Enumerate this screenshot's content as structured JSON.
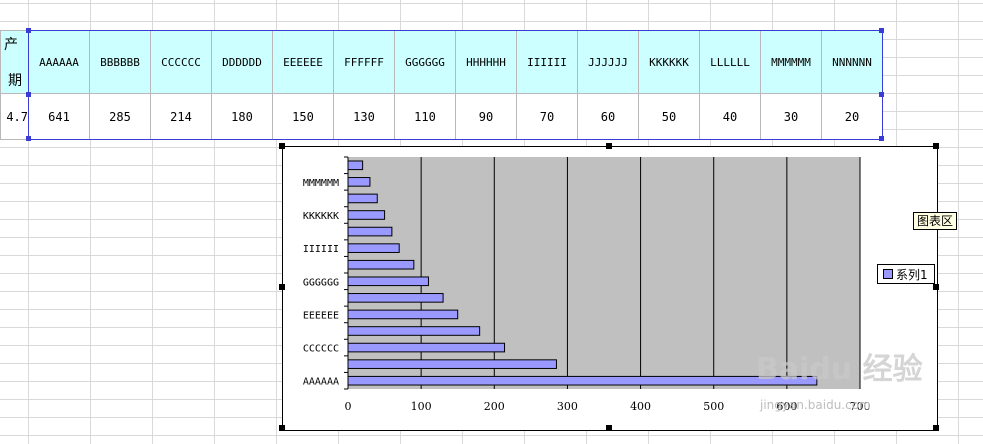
{
  "sheet": {
    "left_partial_value": "4.7",
    "left_partial_header_top": "产",
    "left_partial_header_bottom": "期"
  },
  "legend": {
    "label": "系列1"
  },
  "tooltip": {
    "label": "图表区"
  },
  "watermark": {
    "brand": "Baidu 经验",
    "url": "jingyan.baidu.com"
  },
  "colors": {
    "bar_fill": "#9999ff",
    "plot_bg": "#c0c0c0",
    "header_bg": "#ccffff"
  },
  "chart_data": {
    "type": "bar",
    "orientation": "horizontal",
    "categories": [
      "AAAAAA",
      "BBBBBB",
      "CCCCCC",
      "DDDDDD",
      "EEEEEE",
      "FFFFFF",
      "GGGGGG",
      "HHHHHH",
      "IIIIII",
      "JJJJJJ",
      "KKKKKK",
      "LLLLLL",
      "MMMMMM",
      "NNNNNN"
    ],
    "series": [
      {
        "name": "系列1",
        "values": [
          641,
          285,
          214,
          180,
          150,
          130,
          110,
          90,
          70,
          60,
          50,
          40,
          30,
          20
        ]
      }
    ],
    "tick_labels_shown": [
      "AAAAAA",
      "CCCCCC",
      "EEEEEE",
      "GGGGGG",
      "IIIIII",
      "KKKKKK",
      "MMMMMM"
    ],
    "x_ticks": [
      0,
      100,
      200,
      300,
      400,
      500,
      600,
      700
    ],
    "xlim": [
      0,
      700
    ],
    "grid": true,
    "legend_position": "right"
  }
}
